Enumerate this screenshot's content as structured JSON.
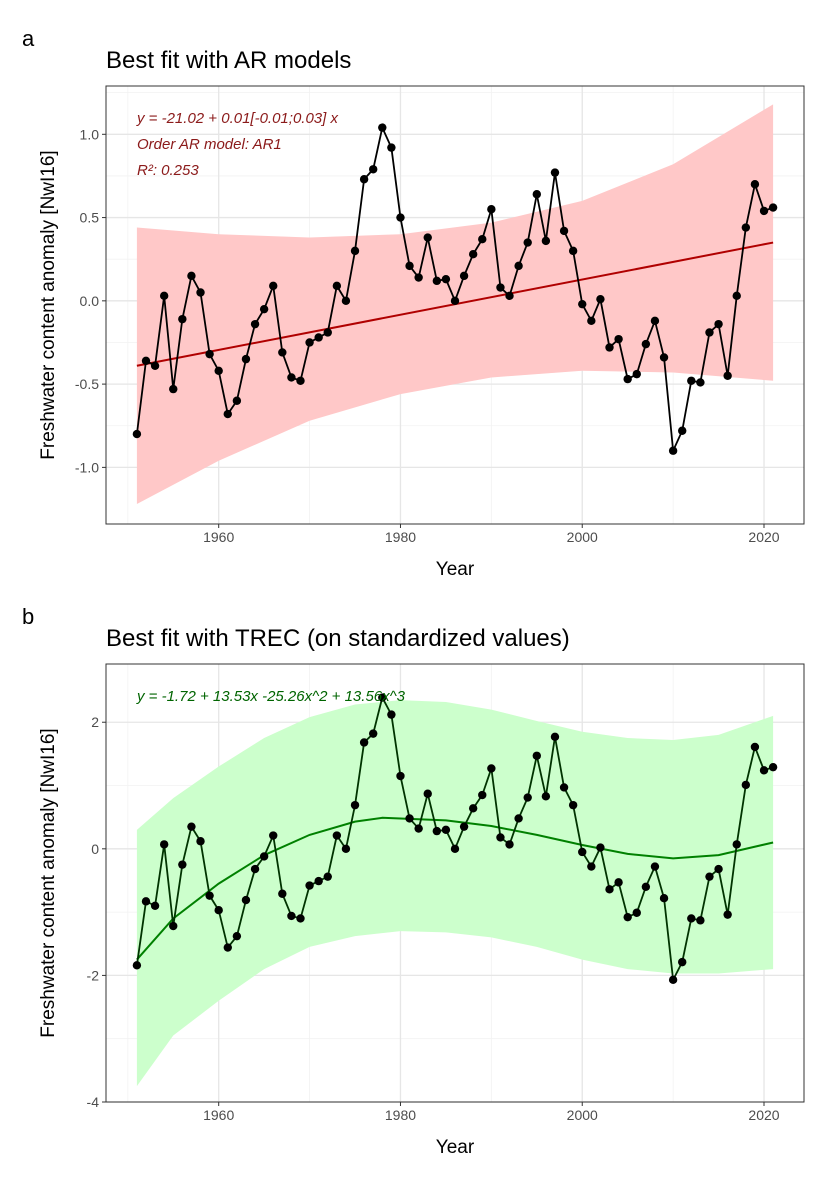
{
  "chart_data": [
    {
      "panel_label": "a",
      "type": "line",
      "title": "Best fit with AR models",
      "xlabel": "Year",
      "ylabel": "Freshwater content anomaly [NwI16]",
      "xlim": [
        1947.6,
        2024.4
      ],
      "ylim": [
        -1.34,
        1.29
      ],
      "xticks": [
        1960,
        1980,
        2000,
        2020
      ],
      "yticks": [
        -1.0,
        -0.5,
        0.0,
        0.5,
        1.0
      ],
      "ytick_labels": [
        "-1.0",
        "-0.5",
        "0.0",
        "0.5",
        "1.0"
      ],
      "grid": true,
      "annotations": [
        "y = -21.02 + 0.01[-0.01;0.03] x",
        "Order AR model: AR1",
        "R²: 0.253"
      ],
      "colors": {
        "line": "#000000",
        "fit": "#B00000",
        "ribbon": "#FFC8C8",
        "annotation": "#8B1A1A"
      },
      "x": [
        1951,
        1952,
        1953,
        1954,
        1955,
        1956,
        1957,
        1958,
        1959,
        1960,
        1961,
        1962,
        1963,
        1964,
        1965,
        1966,
        1967,
        1968,
        1969,
        1970,
        1971,
        1972,
        1973,
        1974,
        1975,
        1976,
        1977,
        1978,
        1979,
        1980,
        1981,
        1982,
        1983,
        1984,
        1985,
        1986,
        1987,
        1988,
        1989,
        1990,
        1991,
        1992,
        1993,
        1994,
        1995,
        1996,
        1997,
        1998,
        1999,
        2000,
        2001,
        2002,
        2003,
        2004,
        2005,
        2006,
        2007,
        2008,
        2009,
        2010,
        2011,
        2012,
        2013,
        2014,
        2015,
        2016,
        2017,
        2018,
        2019,
        2020,
        2021
      ],
      "y": [
        -0.8,
        -0.36,
        -0.39,
        0.03,
        -0.53,
        -0.11,
        0.15,
        0.05,
        -0.32,
        -0.42,
        -0.68,
        -0.6,
        -0.35,
        -0.14,
        -0.05,
        0.09,
        -0.31,
        -0.46,
        -0.48,
        -0.25,
        -0.22,
        -0.19,
        0.09,
        0.0,
        0.3,
        0.73,
        0.79,
        1.04,
        0.92,
        0.5,
        0.21,
        0.14,
        0.38,
        0.12,
        0.13,
        0.0,
        0.15,
        0.28,
        0.37,
        0.55,
        0.08,
        0.03,
        0.21,
        0.35,
        0.64,
        0.36,
        0.77,
        0.42,
        0.3,
        -0.02,
        -0.12,
        0.01,
        -0.28,
        -0.23,
        -0.47,
        -0.44,
        -0.26,
        -0.12,
        -0.34,
        -0.9,
        -0.78,
        -0.48,
        -0.49,
        -0.19,
        -0.14,
        -0.45,
        0.03,
        0.44,
        0.7,
        0.54,
        0.56
      ],
      "fit": {
        "x": [
          1951,
          2021
        ],
        "y": [
          -0.39,
          0.35
        ]
      },
      "ribbon": {
        "x": [
          1951,
          1960,
          1970,
          1980,
          1990,
          2000,
          2010,
          2021
        ],
        "upper": [
          0.44,
          0.4,
          0.38,
          0.4,
          0.47,
          0.6,
          0.82,
          1.18
        ],
        "lower": [
          -1.22,
          -0.96,
          -0.72,
          -0.56,
          -0.46,
          -0.42,
          -0.43,
          -0.48
        ]
      }
    },
    {
      "panel_label": "b",
      "type": "line",
      "title": "Best fit with TREC (on standardized values)",
      "xlabel": "Year",
      "ylabel": "Freshwater content anomaly [NwI16]",
      "xlim": [
        1947.6,
        2024.4
      ],
      "ylim": [
        -4.0,
        2.92
      ],
      "xticks": [
        1960,
        1980,
        2000,
        2020
      ],
      "yticks": [
        -4,
        -2,
        0,
        2
      ],
      "ytick_labels": [
        "-4",
        "-2",
        "0",
        "2"
      ],
      "grid": true,
      "annotations": [
        "y =  -1.72  + 13.53x   -25.26x^2  + 13.56x^3"
      ],
      "colors": {
        "line": "#003300",
        "fit": "#008000",
        "ribbon": "#CCFFCC",
        "annotation": "#006400"
      },
      "x": [
        1951,
        1952,
        1953,
        1954,
        1955,
        1956,
        1957,
        1958,
        1959,
        1960,
        1961,
        1962,
        1963,
        1964,
        1965,
        1966,
        1967,
        1968,
        1969,
        1970,
        1971,
        1972,
        1973,
        1974,
        1975,
        1976,
        1977,
        1978,
        1979,
        1980,
        1981,
        1982,
        1983,
        1984,
        1985,
        1986,
        1987,
        1988,
        1989,
        1990,
        1991,
        1992,
        1993,
        1994,
        1995,
        1996,
        1997,
        1998,
        1999,
        2000,
        2001,
        2002,
        2003,
        2004,
        2005,
        2006,
        2007,
        2008,
        2009,
        2010,
        2011,
        2012,
        2013,
        2014,
        2015,
        2016,
        2017,
        2018,
        2019,
        2020,
        2021
      ],
      "y": [
        -1.84,
        -0.83,
        -0.9,
        0.07,
        -1.22,
        -0.25,
        0.35,
        0.12,
        -0.74,
        -0.97,
        -1.56,
        -1.38,
        -0.81,
        -0.32,
        -0.12,
        0.21,
        -0.71,
        -1.06,
        -1.1,
        -0.58,
        -0.51,
        -0.44,
        0.21,
        0.0,
        0.69,
        1.68,
        1.82,
        2.39,
        2.12,
        1.15,
        0.48,
        0.32,
        0.87,
        0.28,
        0.3,
        0.0,
        0.35,
        0.64,
        0.85,
        1.27,
        0.18,
        0.07,
        0.48,
        0.81,
        1.47,
        0.83,
        1.77,
        0.97,
        0.69,
        -0.05,
        -0.28,
        0.02,
        -0.64,
        -0.53,
        -1.08,
        -1.01,
        -0.6,
        -0.28,
        -0.78,
        -2.07,
        -1.79,
        -1.1,
        -1.13,
        -0.44,
        -0.32,
        -1.04,
        0.07,
        1.01,
        1.61,
        1.24,
        1.29
      ],
      "fit": {
        "x": [
          1951,
          1955,
          1960,
          1965,
          1970,
          1975,
          1978,
          1985,
          1990,
          1995,
          2000,
          2005,
          2010,
          2015,
          2021
        ],
        "y": [
          -1.75,
          -1.1,
          -0.55,
          -0.1,
          0.22,
          0.43,
          0.49,
          0.45,
          0.36,
          0.22,
          0.06,
          -0.08,
          -0.15,
          -0.1,
          0.1
        ]
      },
      "ribbon": {
        "x": [
          1951,
          1955,
          1960,
          1965,
          1970,
          1975,
          1980,
          1985,
          1990,
          1995,
          2000,
          2005,
          2010,
          2015,
          2021
        ],
        "upper": [
          0.3,
          0.8,
          1.3,
          1.75,
          2.08,
          2.28,
          2.35,
          2.32,
          2.2,
          2.02,
          1.85,
          1.75,
          1.72,
          1.8,
          2.1
        ],
        "lower": [
          -3.75,
          -2.95,
          -2.4,
          -1.9,
          -1.55,
          -1.38,
          -1.3,
          -1.32,
          -1.4,
          -1.55,
          -1.75,
          -1.9,
          -1.97,
          -1.97,
          -1.9
        ]
      }
    }
  ]
}
